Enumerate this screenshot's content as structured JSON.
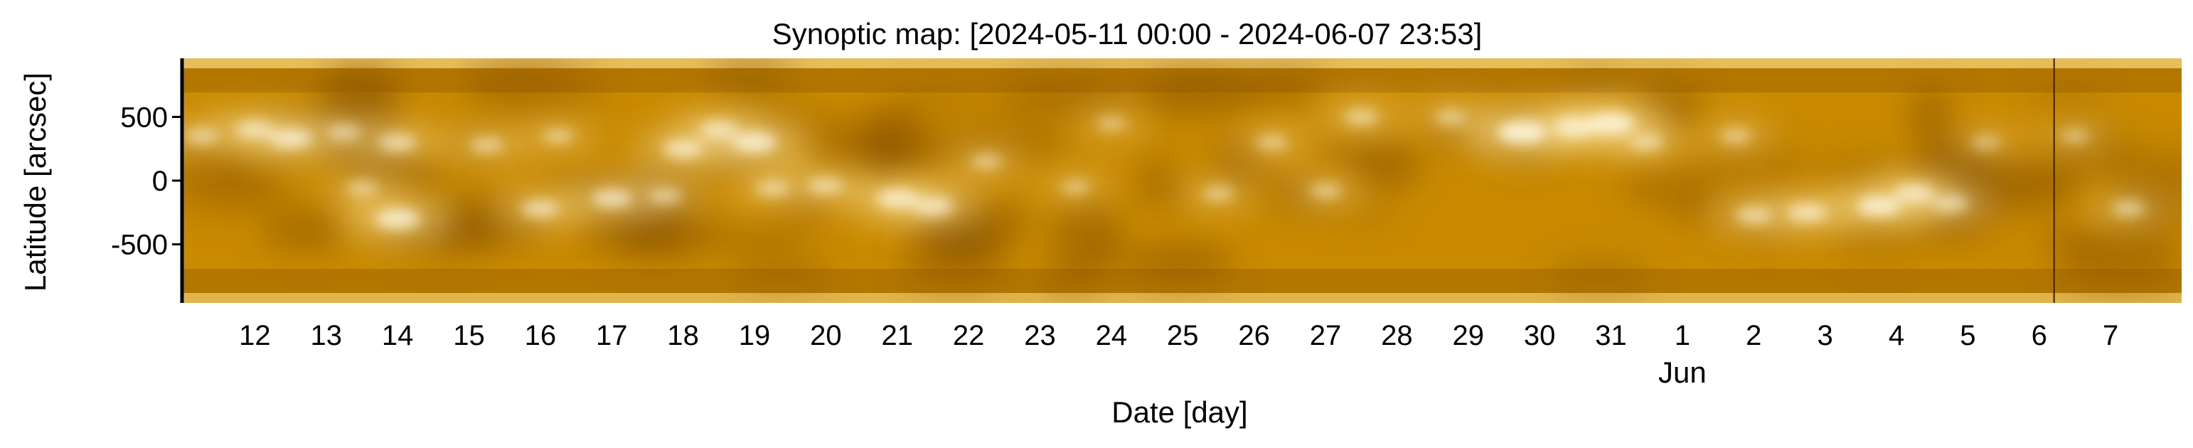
{
  "chart_data": {
    "type": "heatmap",
    "title": "Synoptic map: [2024-05-11 00:00 - 2024-06-07 23:53]",
    "xlabel": "Date [day]",
    "ylabel": "Latitude [arcsec]",
    "x_range": [
      "2024-05-11 00:00",
      "2024-06-07 23:53"
    ],
    "ylim": [
      -960,
      960
    ],
    "y_ticks": [
      {
        "value": 500,
        "label": "500"
      },
      {
        "value": 0,
        "label": "0"
      },
      {
        "value": -500,
        "label": "-500"
      }
    ],
    "x_ticks": [
      {
        "date": "2024-05-12",
        "label": "12"
      },
      {
        "date": "2024-05-13",
        "label": "13"
      },
      {
        "date": "2024-05-14",
        "label": "14"
      },
      {
        "date": "2024-05-15",
        "label": "15"
      },
      {
        "date": "2024-05-16",
        "label": "16"
      },
      {
        "date": "2024-05-17",
        "label": "17"
      },
      {
        "date": "2024-05-18",
        "label": "18"
      },
      {
        "date": "2024-05-19",
        "label": "19"
      },
      {
        "date": "2024-05-20",
        "label": "20"
      },
      {
        "date": "2024-05-21",
        "label": "21"
      },
      {
        "date": "2024-05-22",
        "label": "22"
      },
      {
        "date": "2024-05-23",
        "label": "23"
      },
      {
        "date": "2024-05-24",
        "label": "24"
      },
      {
        "date": "2024-05-25",
        "label": "25"
      },
      {
        "date": "2024-05-26",
        "label": "26"
      },
      {
        "date": "2024-05-27",
        "label": "27"
      },
      {
        "date": "2024-05-28",
        "label": "28"
      },
      {
        "date": "2024-05-29",
        "label": "29"
      },
      {
        "date": "2024-05-30",
        "label": "30"
      },
      {
        "date": "2024-05-31",
        "label": "31"
      },
      {
        "date": "2024-06-01",
        "label": "1"
      },
      {
        "date": "2024-06-02",
        "label": "2"
      },
      {
        "date": "2024-06-03",
        "label": "3"
      },
      {
        "date": "2024-06-04",
        "label": "4"
      },
      {
        "date": "2024-06-05",
        "label": "5"
      },
      {
        "date": "2024-06-06",
        "label": "6"
      },
      {
        "date": "2024-06-07",
        "label": "7"
      }
    ],
    "month_label": {
      "date": "2024-06-01",
      "label": "Jun"
    },
    "data_gap": {
      "date": "2024-06-06 05:00"
    },
    "colormap": {
      "dark": "#8a5400",
      "mid": "#c98a00",
      "bright": "#ffe9a8",
      "peak": "#fffbe8"
    },
    "grid": false,
    "bright_regions": [
      {
        "date": "2024-05-11 06:00",
        "lat": 350,
        "intensity": 0.6
      },
      {
        "date": "2024-05-12 00:00",
        "lat": 400,
        "intensity": 0.7
      },
      {
        "date": "2024-05-12 12:00",
        "lat": 330,
        "intensity": 0.8
      },
      {
        "date": "2024-05-13 06:00",
        "lat": 380,
        "intensity": 0.6
      },
      {
        "date": "2024-05-13 12:00",
        "lat": -60,
        "intensity": 0.55
      },
      {
        "date": "2024-05-14 00:00",
        "lat": -300,
        "intensity": 0.85
      },
      {
        "date": "2024-05-14 00:00",
        "lat": 300,
        "intensity": 0.7
      },
      {
        "date": "2024-05-15 06:00",
        "lat": 280,
        "intensity": 0.6
      },
      {
        "date": "2024-05-16 00:00",
        "lat": -220,
        "intensity": 0.7
      },
      {
        "date": "2024-05-16 06:00",
        "lat": 350,
        "intensity": 0.55
      },
      {
        "date": "2024-05-17 00:00",
        "lat": -140,
        "intensity": 0.75
      },
      {
        "date": "2024-05-17 18:00",
        "lat": -120,
        "intensity": 0.6
      },
      {
        "date": "2024-05-18 00:00",
        "lat": 250,
        "intensity": 0.75
      },
      {
        "date": "2024-05-18 12:00",
        "lat": 400,
        "intensity": 0.7
      },
      {
        "date": "2024-05-19 00:00",
        "lat": 300,
        "intensity": 0.85
      },
      {
        "date": "2024-05-19 06:00",
        "lat": -60,
        "intensity": 0.6
      },
      {
        "date": "2024-05-20 00:00",
        "lat": -40,
        "intensity": 0.65
      },
      {
        "date": "2024-05-21 00:00",
        "lat": -140,
        "intensity": 0.8
      },
      {
        "date": "2024-05-21 12:00",
        "lat": -200,
        "intensity": 0.75
      },
      {
        "date": "2024-05-22 06:00",
        "lat": 150,
        "intensity": 0.55
      },
      {
        "date": "2024-05-23 12:00",
        "lat": -50,
        "intensity": 0.5
      },
      {
        "date": "2024-05-24 00:00",
        "lat": 450,
        "intensity": 0.5
      },
      {
        "date": "2024-05-25 12:00",
        "lat": -100,
        "intensity": 0.55
      },
      {
        "date": "2024-05-26 06:00",
        "lat": 300,
        "intensity": 0.55
      },
      {
        "date": "2024-05-27 00:00",
        "lat": -80,
        "intensity": 0.55
      },
      {
        "date": "2024-05-27 12:00",
        "lat": 500,
        "intensity": 0.6
      },
      {
        "date": "2024-05-28 18:00",
        "lat": 500,
        "intensity": 0.55
      },
      {
        "date": "2024-05-29 18:00",
        "lat": 380,
        "intensity": 0.95
      },
      {
        "date": "2024-05-30 12:00",
        "lat": 420,
        "intensity": 0.8
      },
      {
        "date": "2024-05-31 00:00",
        "lat": 450,
        "intensity": 0.9
      },
      {
        "date": "2024-05-31 12:00",
        "lat": 300,
        "intensity": 0.6
      },
      {
        "date": "2024-06-01 18:00",
        "lat": 350,
        "intensity": 0.55
      },
      {
        "date": "2024-06-02 00:00",
        "lat": -270,
        "intensity": 0.65
      },
      {
        "date": "2024-06-02 18:00",
        "lat": -250,
        "intensity": 0.75
      },
      {
        "date": "2024-06-03 18:00",
        "lat": -200,
        "intensity": 0.85
      },
      {
        "date": "2024-06-04 06:00",
        "lat": -100,
        "intensity": 0.75
      },
      {
        "date": "2024-06-04 18:00",
        "lat": -180,
        "intensity": 0.65
      },
      {
        "date": "2024-06-05 06:00",
        "lat": 300,
        "intensity": 0.5
      },
      {
        "date": "2024-06-06 12:00",
        "lat": 350,
        "intensity": 0.5
      },
      {
        "date": "2024-06-07 06:00",
        "lat": -220,
        "intensity": 0.6
      }
    ]
  }
}
